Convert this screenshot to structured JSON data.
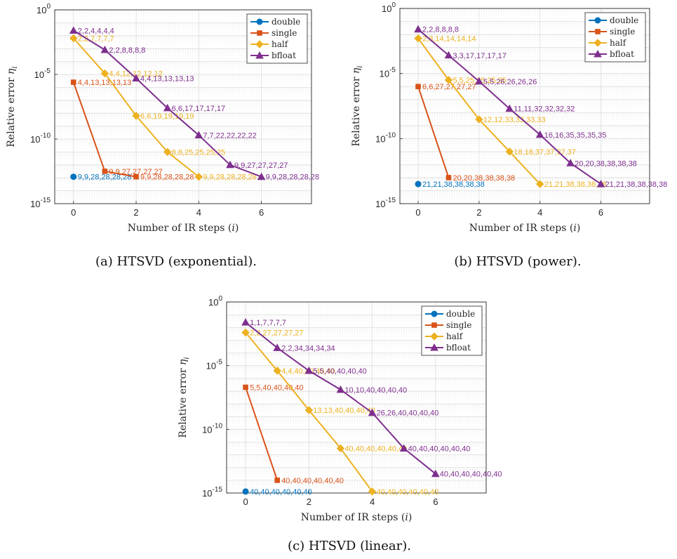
{
  "chart_data": [
    {
      "type": "line",
      "caption": "(a) HTSVD (exponential).",
      "xlabel": "Number of IR steps (i)",
      "ylabel": "Relative error η_i",
      "yscale": "log",
      "xlim": [
        -0.6,
        7.6
      ],
      "ylim": [
        1e-15,
        1
      ],
      "xticks": [
        "0",
        "2",
        "4",
        "6"
      ],
      "yticks": [
        {
          "base": "10",
          "exp": "0"
        },
        {
          "base": "10",
          "exp": "-5"
        },
        {
          "base": "10",
          "exp": "-10"
        },
        {
          "base": "10",
          "exp": "-15"
        }
      ],
      "grid": true,
      "legend_position": "top-right",
      "series": [
        {
          "name": "double",
          "color": "#0072BD",
          "marker": "circle",
          "x": [
            0
          ],
          "y": [
            1.2e-13
          ],
          "labels": [
            "9,9,28,28,28,28"
          ]
        },
        {
          "name": "single",
          "color": "#D95319",
          "marker": "square",
          "x": [
            0,
            1,
            2
          ],
          "y": [
            2.5e-06,
            3.2e-13,
            1.2e-13
          ],
          "labels": [
            "4,4,13,13,13,13",
            "9,9,27,27,27,27",
            "9,9,28,28,28,28"
          ]
        },
        {
          "name": "half",
          "color": "#EDB120",
          "marker": "diamond",
          "x": [
            0,
            1,
            2,
            3,
            4
          ],
          "y": [
            0.0063,
            1.2e-05,
            6.3e-09,
            1e-11,
            1.2e-13
          ],
          "labels": [
            "2,2,7,7,7,7",
            "4,4,12,12,12,12",
            "6,6,19,19,19,19",
            "8,8,25,25,25,25",
            "9,9,28,28,28,28"
          ]
        },
        {
          "name": "bfloat",
          "color": "#7E2F8E",
          "marker": "triangle",
          "x": [
            0,
            1,
            2,
            3,
            4,
            5,
            6
          ],
          "y": [
            0.025,
            0.0008,
            5e-06,
            2.5e-08,
            2e-10,
            1e-12,
            1.2e-13
          ],
          "labels": [
            "2,2,4,4,4,4",
            "2,2,8,8,8,8",
            "4,4,13,13,13,13",
            "6,6,17,17,17,17",
            "7,7,22,22,22,22",
            "9,9,27,27,27,27",
            "9,9,28,28,28,28"
          ]
        }
      ]
    },
    {
      "type": "line",
      "caption": "(b) HTSVD (power).",
      "xlabel": "Number of IR steps (i)",
      "ylabel": "Relative error η_i",
      "yscale": "log",
      "xlim": [
        -0.6,
        7.6
      ],
      "ylim": [
        1e-15,
        1
      ],
      "xticks": [
        "0",
        "2",
        "4",
        "6"
      ],
      "yticks": [
        {
          "base": "10",
          "exp": "0"
        },
        {
          "base": "10",
          "exp": "-5"
        },
        {
          "base": "10",
          "exp": "-10"
        },
        {
          "base": "10",
          "exp": "-15"
        }
      ],
      "grid": true,
      "legend_position": "top-right",
      "series": [
        {
          "name": "double",
          "color": "#0072BD",
          "marker": "circle",
          "x": [
            0
          ],
          "y": [
            3.2e-14
          ],
          "labels": [
            "21,21,38,38,38,38"
          ]
        },
        {
          "name": "single",
          "color": "#D95319",
          "marker": "square",
          "x": [
            0,
            1
          ],
          "y": [
            1e-06,
            1e-13
          ],
          "labels": [
            "6,6,27,27,27,27",
            "20,20,38,38,38,38"
          ]
        },
        {
          "name": "half",
          "color": "#EDB120",
          "marker": "diamond",
          "x": [
            0,
            1,
            2,
            3,
            4
          ],
          "y": [
            0.005,
            3.2e-06,
            3e-09,
            1e-11,
            3.2e-14
          ],
          "labels": [
            "2,3,14,14,14,14",
            "5,5,25,25,25,25",
            "12,12,33,33,33,33",
            "18,18,37,37,37,37",
            "21,21,38,38,38,38"
          ]
        },
        {
          "name": "bfloat",
          "color": "#7E2F8E",
          "marker": "triangle",
          "x": [
            0,
            1,
            2,
            3,
            4,
            5,
            6
          ],
          "y": [
            0.025,
            0.00025,
            2.5e-06,
            2e-08,
            2e-10,
            1.3e-12,
            3.2e-14
          ],
          "labels": [
            "2,2,8,8,8,8",
            "3,3,17,17,17,17",
            "5,5,26,26,26,26",
            "11,11,32,32,32,32",
            "16,16,35,35,35,35",
            "20,20,38,38,38,38",
            "21,21,38,38,38,38"
          ]
        }
      ]
    },
    {
      "type": "line",
      "caption": "(c) HTSVD (linear).",
      "xlabel": "Number of IR steps (i)",
      "ylabel": "Relative error η_i",
      "yscale": "log",
      "xlim": [
        -0.6,
        7.6
      ],
      "ylim": [
        1e-15,
        1
      ],
      "xticks": [
        "0",
        "2",
        "4",
        "6"
      ],
      "yticks": [
        {
          "base": "10",
          "exp": "0"
        },
        {
          "base": "10",
          "exp": "-5"
        },
        {
          "base": "10",
          "exp": "-10"
        },
        {
          "base": "10",
          "exp": "-15"
        }
      ],
      "grid": true,
      "legend_position": "top-right",
      "series": [
        {
          "name": "double",
          "color": "#0072BD",
          "marker": "circle",
          "x": [
            0
          ],
          "y": [
            1.3e-15
          ],
          "labels": [
            "40,40,40,40,40,40"
          ]
        },
        {
          "name": "single",
          "color": "#D95319",
          "marker": "square",
          "x": [
            0,
            1
          ],
          "y": [
            2e-07,
            1e-14
          ],
          "labels": [
            "5,5,40,40,40,40",
            "40,40,40,40,40,40"
          ]
        },
        {
          "name": "half",
          "color": "#EDB120",
          "marker": "diamond",
          "x": [
            0,
            1,
            2,
            3,
            4
          ],
          "y": [
            0.004,
            4e-06,
            3.2e-09,
            3.2e-12,
            1.3e-15
          ],
          "labels": [
            "2,2,27,27,27,27",
            "4,4,40,40,40,40",
            "13,13,40,40,40,40",
            "40,40,40,40,40,40",
            "40,40,40,40,40,40"
          ]
        },
        {
          "name": "bfloat",
          "color": "#7E2F8E",
          "marker": "triangle",
          "x": [
            0,
            1,
            2,
            3,
            4,
            5,
            6
          ],
          "y": [
            0.025,
            0.00025,
            4e-06,
            1.3e-07,
            2e-09,
            3.2e-12,
            3.2e-14
          ],
          "labels": [
            "1,1,7,7,7,7",
            "2,2,34,34,34,34",
            "5,5,40,40,40,40",
            "10,10,40,40,40,40",
            "26,26,40,40,40,40",
            "40,40,40,40,40,40",
            "40,40,40,40,40,40"
          ]
        }
      ]
    }
  ]
}
